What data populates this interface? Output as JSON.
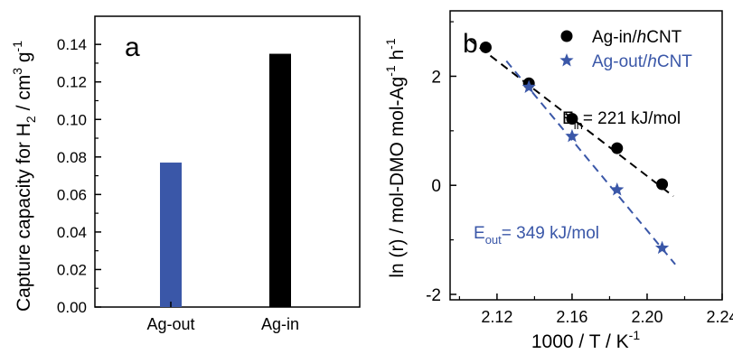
{
  "colors": {
    "blue": "#3a57a8",
    "black": "#000000"
  },
  "panel_a": {
    "letter": "a",
    "ylabel_main": "Capture capacity for H",
    "ylabel_sub": "2",
    "ylabel_unit_a": " / cm",
    "ylabel_sup": "3",
    "ylabel_unit_b": " g",
    "ylabel_sup2": "-1"
  },
  "panel_b": {
    "letter": "b",
    "ylabel_a": "ln (r) / mol-DMO mol-Ag",
    "ylabel_sup1": "-1",
    "ylabel_b": " h",
    "ylabel_sup2": "-1",
    "xlabel_a": "1000 / T / K",
    "xlabel_sup": "-1",
    "legend_in_a": "Ag-in/",
    "legend_in_h": "h",
    "legend_in_b": "CNT",
    "legend_out_a": "Ag-out/",
    "legend_out_h": "h",
    "legend_out_b": "CNT",
    "ann_in_E": "E",
    "ann_in_sub": "in",
    "ann_in_rest": "= 221 kJ/mol",
    "ann_out_E": "E",
    "ann_out_sub": "out",
    "ann_out_rest": "= 349 kJ/mol"
  },
  "chart_data": [
    {
      "type": "bar",
      "categories": [
        "Ag-out",
        "Ag-in"
      ],
      "values": [
        0.077,
        0.135
      ],
      "bar_colors": [
        "#3a57a8",
        "#000000"
      ],
      "ylim": [
        0,
        0.155
      ],
      "yticks": [
        "0.00",
        "0.02",
        "0.04",
        "0.06",
        "0.08",
        "0.10",
        "0.12",
        "0.14"
      ]
    },
    {
      "type": "scatter",
      "xlim": [
        2.095,
        2.24
      ],
      "ylim": [
        -2.1,
        3.2
      ],
      "xticks": [
        "2.12",
        "2.16",
        "2.20",
        "2.24"
      ],
      "yticks": [
        "-2",
        "0",
        "2"
      ],
      "series": [
        {
          "name": "Ag-in/hCNT",
          "marker": "circle",
          "color": "#000000",
          "x": [
            2.114,
            2.137,
            2.16,
            2.184,
            2.208
          ],
          "y": [
            2.53,
            1.87,
            1.22,
            0.68,
            0.02
          ],
          "fit": {
            "x": [
              2.105,
              2.214
            ],
            "y": [
              2.68,
              -0.2
            ]
          }
        },
        {
          "name": "Ag-out/hCNT",
          "marker": "star",
          "color": "#3a57a8",
          "x": [
            2.137,
            2.16,
            2.184,
            2.208
          ],
          "y": [
            1.8,
            0.9,
            -0.08,
            -1.15
          ],
          "fit": {
            "x": [
              2.125,
              2.215
            ],
            "y": [
              2.28,
              -1.45
            ]
          }
        }
      ]
    }
  ]
}
